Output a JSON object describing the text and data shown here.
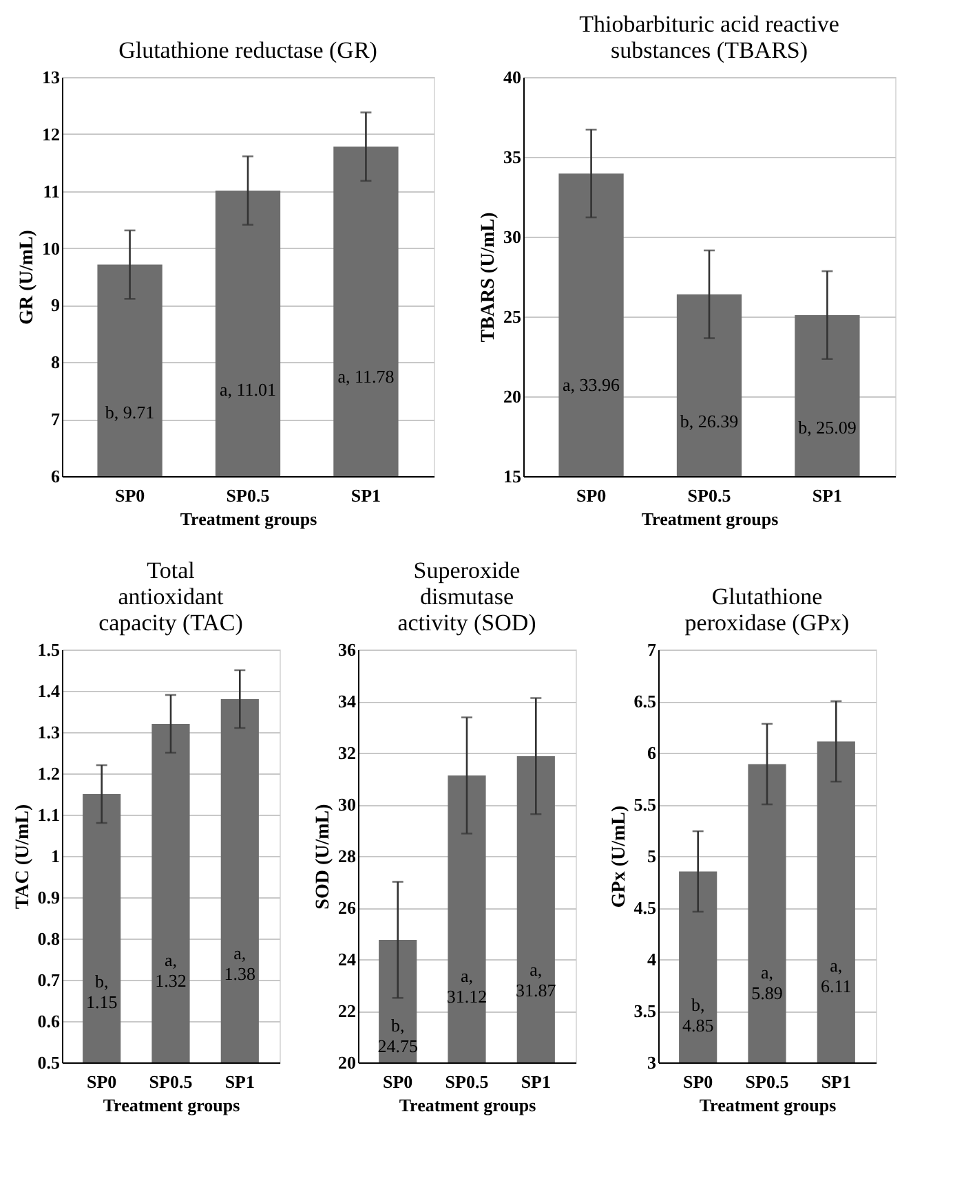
{
  "chart_data": [
    {
      "type": "bar",
      "title": "Glutathione reductase (GR)",
      "xlabel": "Treatment groups",
      "ylabel": "GR (U/mL)",
      "categories": [
        "SP0",
        "SP0.5",
        "SP1"
      ],
      "values": [
        9.71,
        11.01,
        11.78
      ],
      "errors": [
        0.6,
        0.6,
        0.6
      ],
      "value_labels": [
        "b, 9.71",
        "a, 11.01",
        "a, 11.78"
      ],
      "color": "#6e6e6e",
      "ylim": [
        6,
        13
      ],
      "yticks": [
        6,
        7,
        8,
        9,
        10,
        11,
        12,
        13
      ],
      "grid": "y"
    },
    {
      "type": "bar",
      "title": "Thiobarbituric acid reactive substances (TBARS)",
      "xlabel": "Treatment groups",
      "ylabel": "TBARS (U/mL)",
      "categories": [
        "SP0",
        "SP0.5",
        "SP1"
      ],
      "values": [
        33.96,
        26.39,
        25.09
      ],
      "errors": [
        2.75,
        2.75,
        2.75
      ],
      "value_labels": [
        "a, 33.96",
        "b, 26.39",
        "b, 25.09"
      ],
      "color": "#6e6e6e",
      "ylim": [
        15,
        40
      ],
      "yticks": [
        15,
        20,
        25,
        30,
        35,
        40
      ],
      "grid": "y"
    },
    {
      "type": "bar",
      "title": "Total antioxidant capacity (TAC)",
      "xlabel": "Treatment groups",
      "ylabel": "TAC (U/mL)",
      "categories": [
        "SP0",
        "SP0.5",
        "SP1"
      ],
      "values": [
        1.15,
        1.32,
        1.38
      ],
      "errors": [
        0.07,
        0.07,
        0.07
      ],
      "value_labels": [
        "b, 1.15",
        "a, 1.32",
        "a, 1.38"
      ],
      "color": "#6e6e6e",
      "ylim": [
        0.5,
        1.5
      ],
      "yticks": [
        0.5,
        0.6,
        0.7,
        0.8,
        0.9,
        1,
        1.1,
        1.2,
        1.3,
        1.4,
        1.5
      ],
      "grid": "y"
    },
    {
      "type": "bar",
      "title": "Superoxide dismutase activity (SOD)",
      "xlabel": "Treatment groups",
      "ylabel": "SOD (U/mL)",
      "categories": [
        "SP0",
        "SP0.5",
        "SP1"
      ],
      "values": [
        24.75,
        31.12,
        31.87
      ],
      "errors": [
        2.25,
        2.25,
        2.25
      ],
      "value_labels": [
        "b, 24.75",
        "a, 31.12",
        "a, 31.87"
      ],
      "color": "#6e6e6e",
      "ylim": [
        20,
        36
      ],
      "yticks": [
        20,
        22,
        24,
        26,
        28,
        30,
        32,
        34,
        36
      ],
      "grid": "y"
    },
    {
      "type": "bar",
      "title": "Glutathione peroxidase (GPx)",
      "xlabel": "Treatment groups",
      "ylabel": "GPx (U/mL)",
      "categories": [
        "SP0",
        "SP0.5",
        "SP1"
      ],
      "values": [
        4.85,
        5.89,
        6.11
      ],
      "errors": [
        0.39,
        0.39,
        0.39
      ],
      "value_labels": [
        "b, 4.85",
        "a, 5.89",
        "a, 6.11"
      ],
      "color": "#6e6e6e",
      "ylim": [
        3,
        7
      ],
      "yticks": [
        3,
        3.5,
        4,
        4.5,
        5,
        5.5,
        6,
        6.5,
        7
      ],
      "grid": "y"
    }
  ]
}
